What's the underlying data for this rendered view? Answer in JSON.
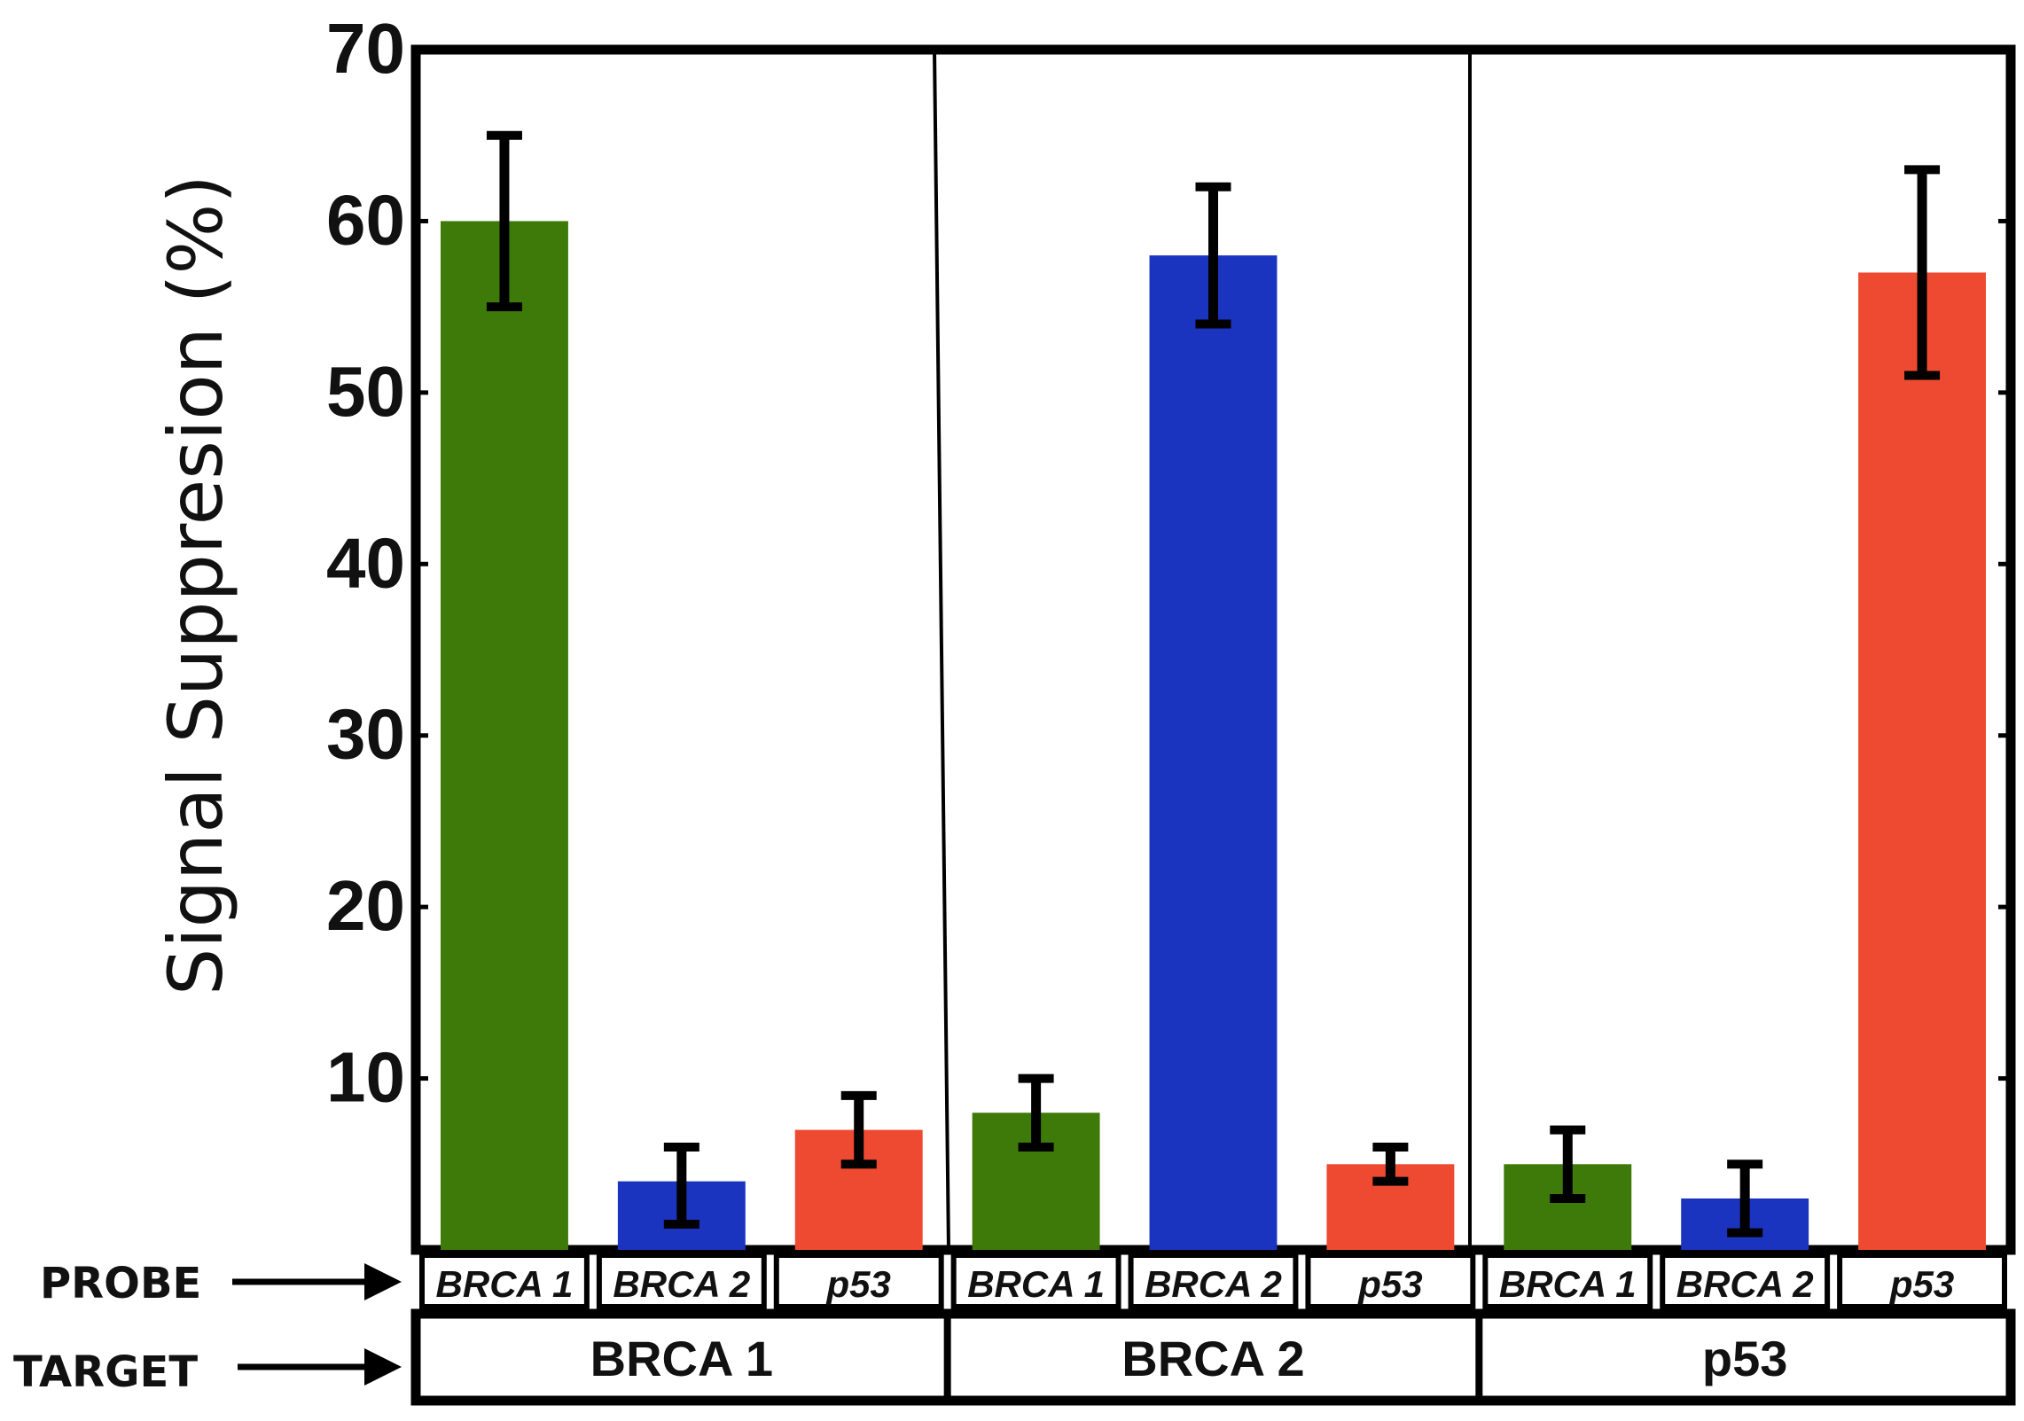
{
  "chart_data": {
    "type": "bar",
    "ylabel": "Signal Suppresion (%)",
    "ylim": [
      0,
      70
    ],
    "yticks": [
      10,
      20,
      30,
      40,
      50,
      60,
      70
    ],
    "grid": false,
    "row_labels": {
      "probe": "PROBE",
      "target": "TARGET"
    },
    "probe_colors": {
      "BRCA 1": "#3d7a0a",
      "BRCA 2": "#1a34c0",
      "p53": "#ee4a31"
    },
    "groups": [
      {
        "target": "BRCA 1",
        "bars": [
          {
            "probe": "BRCA 1",
            "value": 60,
            "err_low": 55,
            "err_high": 65
          },
          {
            "probe": "BRCA 2",
            "value": 4,
            "err_low": 1.5,
            "err_high": 6
          },
          {
            "probe": "p53",
            "value": 7,
            "err_low": 5,
            "err_high": 9
          }
        ]
      },
      {
        "target": "BRCA 2",
        "bars": [
          {
            "probe": "BRCA 1",
            "value": 8,
            "err_low": 6,
            "err_high": 10
          },
          {
            "probe": "BRCA 2",
            "value": 58,
            "err_low": 54,
            "err_high": 62
          },
          {
            "probe": "p53",
            "value": 5,
            "err_low": 4,
            "err_high": 6
          }
        ]
      },
      {
        "target": "p53",
        "bars": [
          {
            "probe": "BRCA 1",
            "value": 5,
            "err_low": 3,
            "err_high": 7
          },
          {
            "probe": "BRCA 2",
            "value": 3,
            "err_low": 1,
            "err_high": 5
          },
          {
            "probe": "p53",
            "value": 57,
            "err_low": 51,
            "err_high": 63
          }
        ]
      }
    ]
  }
}
